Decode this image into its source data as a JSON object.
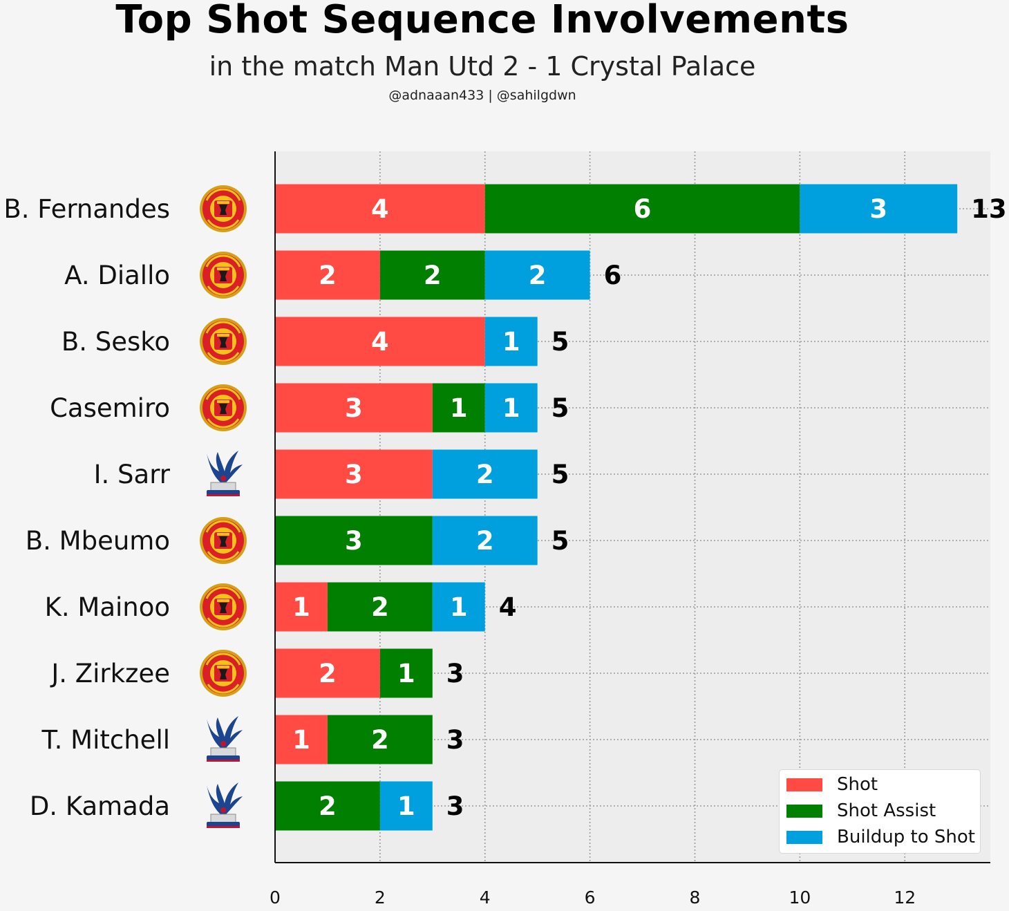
{
  "header": {
    "title": "Top Shot Sequence Involvements",
    "subtitle": "in the match Man Utd 2 - 1 Crystal Palace",
    "credits": "@adnaaan433  | @sahilgdwn"
  },
  "colors": {
    "shot": "#ff4b44",
    "shot_assist": "#007f00",
    "buildup": "#00a0de",
    "plot_bg": "#ededed",
    "page_bg": "#f5f5f5"
  },
  "chart_data": {
    "type": "bar",
    "orientation": "horizontal",
    "stacked": true,
    "title": "Top Shot Sequence Involvements",
    "subtitle": "in the match Man Utd 2 - 1 Crystal Palace",
    "categories": [
      "B. Fernandes",
      "A. Diallo",
      "B. Sesko",
      "Casemiro",
      "I. Sarr",
      "B. Mbeumo",
      "K. Mainoo",
      "J. Zirkzee",
      "T. Mitchell",
      "D. Kamada"
    ],
    "teams": [
      "man-utd",
      "man-utd",
      "man-utd",
      "man-utd",
      "crystal-palace",
      "man-utd",
      "man-utd",
      "man-utd",
      "crystal-palace",
      "crystal-palace"
    ],
    "series": [
      {
        "name": "Shot",
        "color": "#ff4b44",
        "values": [
          4,
          2,
          4,
          3,
          3,
          0,
          1,
          2,
          1,
          0
        ]
      },
      {
        "name": "Shot Assist",
        "color": "#007f00",
        "values": [
          6,
          2,
          0,
          1,
          0,
          3,
          2,
          1,
          2,
          2
        ]
      },
      {
        "name": "Buildup to Shot",
        "color": "#00a0de",
        "values": [
          3,
          2,
          1,
          1,
          2,
          2,
          1,
          0,
          0,
          1
        ]
      }
    ],
    "totals": [
      13,
      6,
      5,
      5,
      5,
      5,
      4,
      3,
      3,
      3
    ],
    "xticks": [
      0,
      2,
      4,
      6,
      8,
      10,
      12
    ],
    "xlim": [
      0,
      13.63
    ],
    "grid": true,
    "legend_position": "bottom-right"
  }
}
